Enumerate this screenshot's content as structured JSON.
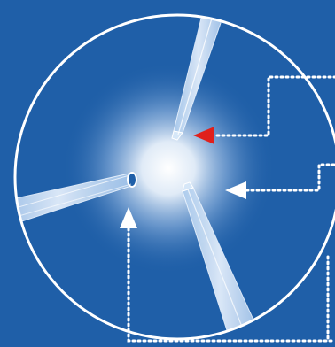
{
  "image": {
    "kind": "microscope-micropipette-illustration",
    "colors": {
      "background": "#1f5fa8",
      "background_dark": "#184f92",
      "circle_border": "#ffffff",
      "glow_center": "#ffffff",
      "pipette_fill": "#cfe2f6",
      "pipette_edge": "#eef6ff",
      "leader_line": "#ffffff",
      "arrow_red": "#e0201c",
      "arrow_white": "#ffffff"
    },
    "elements": {
      "pipettes": [
        "top-pipette",
        "left-pipette",
        "bottom-right-pipette"
      ],
      "arrows": [
        "red-arrow-top",
        "white-arrow-right",
        "white-arrow-bottom"
      ]
    }
  }
}
